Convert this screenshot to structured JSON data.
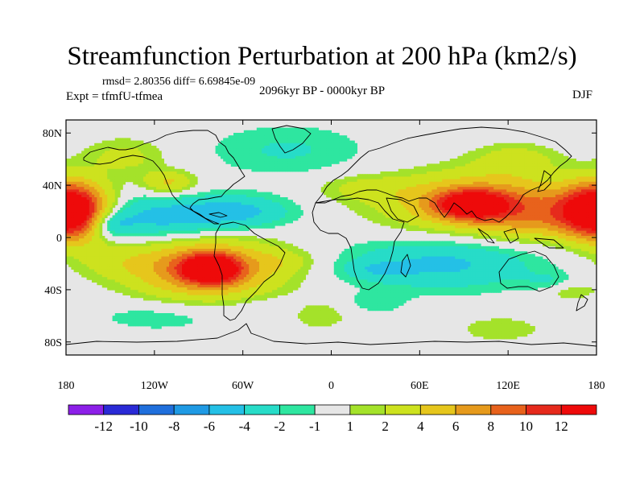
{
  "title": "Streamfunction Perturbation at 200 hPa (km2/s)",
  "stats": "rmsd= 2.80356 diff= 6.69845e-09",
  "experiment": "Expt = tfmfU-tfmea",
  "period": "2096kyr BP - 0000kyr BP",
  "season": "DJF",
  "axes": {
    "lat_labels": [
      "80N",
      "40N",
      "0",
      "40S",
      "80S"
    ],
    "lat_values": [
      80,
      40,
      0,
      -40,
      -80
    ],
    "lon_labels": [
      "180",
      "120W",
      "60W",
      "0",
      "60E",
      "120E",
      "180"
    ],
    "lon_values": [
      -180,
      -120,
      -60,
      0,
      60,
      120,
      180
    ]
  },
  "colorbar": {
    "labels": [
      "-12",
      "-10",
      "-8",
      "-6",
      "-4",
      "-2",
      "-1",
      "1",
      "2",
      "4",
      "6",
      "8",
      "10",
      "12"
    ],
    "colors": [
      "#8c1fe8",
      "#2a2ad6",
      "#1f6fdc",
      "#1f9ae4",
      "#24c0e6",
      "#27dcc8",
      "#2ee6a0",
      "#e6e6e6",
      "#a4e22a",
      "#cde21e",
      "#e6c61c",
      "#e69a1c",
      "#e8621c",
      "#e62a1c",
      "#ee0a0a"
    ]
  },
  "field": {
    "blobs": [
      {
        "lon": -175,
        "lat": 20,
        "rx": 24,
        "ry": 22,
        "v": 9
      },
      {
        "lon": 180,
        "lat": 20,
        "rx": 26,
        "ry": 20,
        "v": 9
      },
      {
        "lon": -140,
        "lat": 62,
        "rx": 28,
        "ry": 14,
        "v": 2.6
      },
      {
        "lon": -110,
        "lat": 42,
        "rx": 18,
        "ry": 9,
        "v": 4.5
      },
      {
        "lon": -115,
        "lat": 15,
        "rx": 55,
        "ry": 17,
        "v": -5
      },
      {
        "lon": -150,
        "lat": 10,
        "rx": 14,
        "ry": 10,
        "v": -4
      },
      {
        "lon": -60,
        "lat": 20,
        "rx": 35,
        "ry": 12,
        "v": -3.5
      },
      {
        "lon": -30,
        "lat": 67,
        "rx": 55,
        "ry": 20,
        "v": -2.2
      },
      {
        "lon": -85,
        "lat": -24,
        "rx": 50,
        "ry": 23,
        "v": 9
      },
      {
        "lon": -82,
        "lat": -24,
        "rx": 18,
        "ry": 10,
        "v": 13
      },
      {
        "lon": -150,
        "lat": -18,
        "rx": 30,
        "ry": 13,
        "v": 1.8
      },
      {
        "lon": -30,
        "lat": -18,
        "rx": 20,
        "ry": 8,
        "v": 1.5
      },
      {
        "lon": 100,
        "lat": 27,
        "rx": 60,
        "ry": 22,
        "v": 8
      },
      {
        "lon": 95,
        "lat": 25,
        "rx": 22,
        "ry": 10,
        "v": 11
      },
      {
        "lon": 140,
        "lat": 15,
        "rx": 40,
        "ry": 18,
        "v": 4
      },
      {
        "lon": 20,
        "lat": 38,
        "rx": 30,
        "ry": 10,
        "v": 2.2
      },
      {
        "lon": 125,
        "lat": 60,
        "rx": 28,
        "ry": 12,
        "v": 2.8
      },
      {
        "lon": 75,
        "lat": -20,
        "rx": 65,
        "ry": 20,
        "v": -4.5
      },
      {
        "lon": 30,
        "lat": -25,
        "rx": 22,
        "ry": 7,
        "v": -2
      },
      {
        "lon": 30,
        "lat": -50,
        "rx": 20,
        "ry": 8,
        "v": -1.6
      },
      {
        "lon": 150,
        "lat": -35,
        "rx": 18,
        "ry": 8,
        "v": -2.2
      },
      {
        "lon": 160,
        "lat": -40,
        "rx": 20,
        "ry": 8,
        "v": 2.5
      },
      {
        "lon": -115,
        "lat": -60,
        "rx": 50,
        "ry": 13,
        "v": -1.8
      },
      {
        "lon": -10,
        "lat": -58,
        "rx": 25,
        "ry": 12,
        "v": 2.8
      },
      {
        "lon": -25,
        "lat": -55,
        "rx": 40,
        "ry": 12,
        "v": -1.5
      },
      {
        "lon": 115,
        "lat": -70,
        "rx": 30,
        "ry": 10,
        "v": 1.8
      }
    ]
  }
}
